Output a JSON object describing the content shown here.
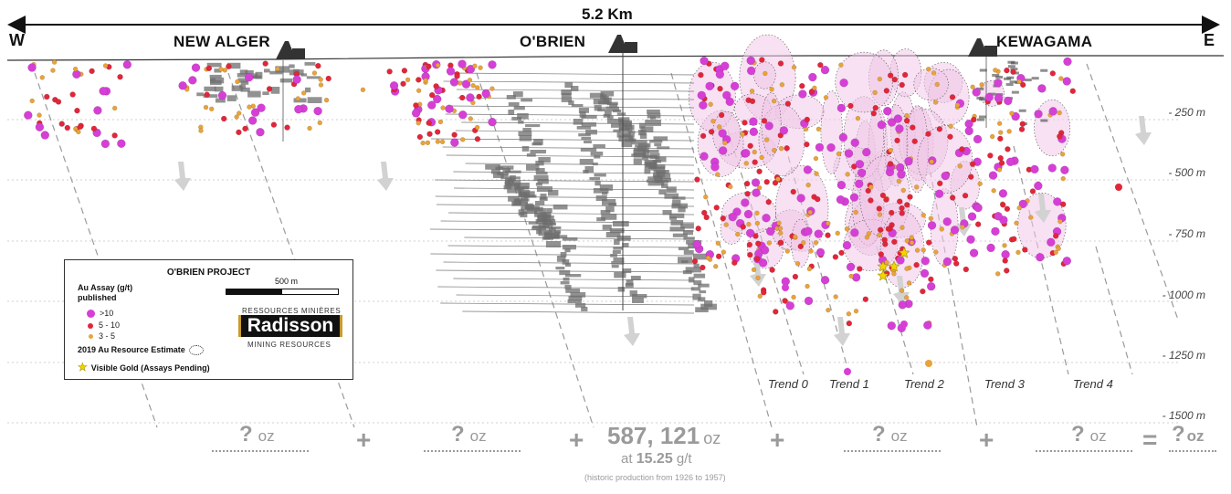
{
  "header": {
    "scale_label": "5.2 Km",
    "west_label": "W",
    "east_label": "E"
  },
  "mines": [
    {
      "name": "NEW ALGER"
    },
    {
      "name": "O'BRIEN"
    },
    {
      "name": "KEWAGAMA"
    }
  ],
  "depth_labels": [
    "- 250 m",
    "- 500 m",
    "- 750 m",
    "- 1000 m",
    "- 1250 m",
    "- 1500 m"
  ],
  "trends": [
    "Trend 0",
    "Trend 1",
    "Trend 2",
    "Trend 3",
    "Trend 4"
  ],
  "legend": {
    "title": "O'BRIEN PROJECT",
    "au_assay_title": "Au Assay (g/t) published",
    "classes": [
      {
        "label": ">10",
        "color": "#d63fd6"
      },
      {
        "label": "5 - 10",
        "color": "#e2263a"
      },
      {
        "label": "3 - 5",
        "color": "#e8a33a"
      }
    ],
    "resource_label": "2019 Au Resource Estimate",
    "visible_gold_label": "Visible Gold (Assays Pending)",
    "scalebar_label": "500 m",
    "logo_top": "RESSOURCES MINIÈRES",
    "logo_main": "Radisson",
    "logo_bottom": "MINING RESOURCES"
  },
  "equation": {
    "unknown_symbol": "?",
    "unit": "oz",
    "plus": "+",
    "equals": "=",
    "production_value": "587, 121",
    "production_unit": "oz",
    "grade_prefix": "at",
    "grade_value": "15.25",
    "grade_unit": "g/t",
    "production_note": "(historic production from 1926 to 1957)"
  },
  "colors": {
    "magenta": "#d63fd6",
    "red": "#e2263a",
    "orange": "#e8a33a",
    "resource_fill": "#f0c8e8",
    "workings": "#6e6e6e",
    "trend_line": "#9a9a9a",
    "star": "#f2d500"
  }
}
